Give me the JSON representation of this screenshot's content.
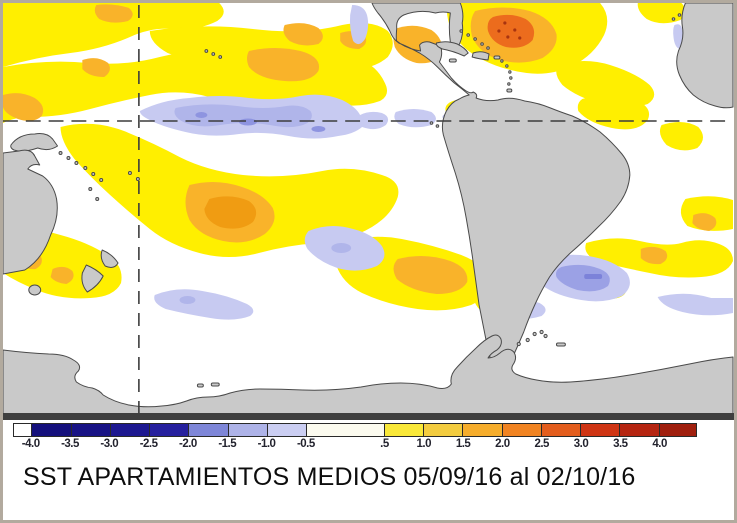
{
  "title": "SST APARTAMIENTOS MEDIOS 05/09/16 al 02/10/16",
  "colors": {
    "ocean": "#ffffff",
    "land": "#c9c9c9",
    "coastline": "#4a4a4a",
    "frame": "#3f3f3f",
    "page_border": "#b2aa9e",
    "gridline": "#3c3c3c",
    "anomaly_yellow": "#ffef00",
    "anomaly_orange": "#f9b32a",
    "anomaly_red_orange": "#ec6c1d",
    "anomaly_lavender": "#c7caf1",
    "anomaly_blue": "#b0b5ea"
  },
  "legend": {
    "total_units": 17.4,
    "segments": [
      {
        "color": "#ffffff",
        "w": 0.45
      },
      {
        "color": "#14107c",
        "w": 1
      },
      {
        "color": "#181385",
        "w": 1
      },
      {
        "color": "#1d1890",
        "w": 1
      },
      {
        "color": "#26209e",
        "w": 1
      },
      {
        "color": "#7e86d8",
        "w": 1
      },
      {
        "color": "#aeb3e8",
        "w": 1
      },
      {
        "color": "#cbcef2",
        "w": 1
      },
      {
        "color": "#fcfbef",
        "w": 2
      },
      {
        "color": "#f9e839",
        "w": 1
      },
      {
        "color": "#f3cc3f",
        "w": 1
      },
      {
        "color": "#f6ad2c",
        "w": 1
      },
      {
        "color": "#f08322",
        "w": 1
      },
      {
        "color": "#e35d1d",
        "w": 1
      },
      {
        "color": "#cf3514",
        "w": 1
      },
      {
        "color": "#b52511",
        "w": 1
      },
      {
        "color": "#a01f0e",
        "w": 0.95
      }
    ],
    "ticks": [
      {
        "label": "-4.0",
        "u": 0.45
      },
      {
        "label": "-3.5",
        "u": 1.45
      },
      {
        "label": "-3.0",
        "u": 2.45
      },
      {
        "label": "-2.5",
        "u": 3.45
      },
      {
        "label": "-2.0",
        "u": 4.45
      },
      {
        "label": "-1.5",
        "u": 5.45
      },
      {
        "label": "-1.0",
        "u": 6.45
      },
      {
        "label": "-0.5",
        "u": 7.45
      },
      {
        "label": ".5",
        "u": 9.45
      },
      {
        "label": "1.0",
        "u": 10.45
      },
      {
        "label": "1.5",
        "u": 11.45
      },
      {
        "label": "2.0",
        "u": 12.45
      },
      {
        "label": "2.5",
        "u": 13.45
      },
      {
        "label": "3.0",
        "u": 14.45
      },
      {
        "label": "3.5",
        "u": 15.45
      },
      {
        "label": "4.0",
        "u": 16.45
      }
    ]
  }
}
